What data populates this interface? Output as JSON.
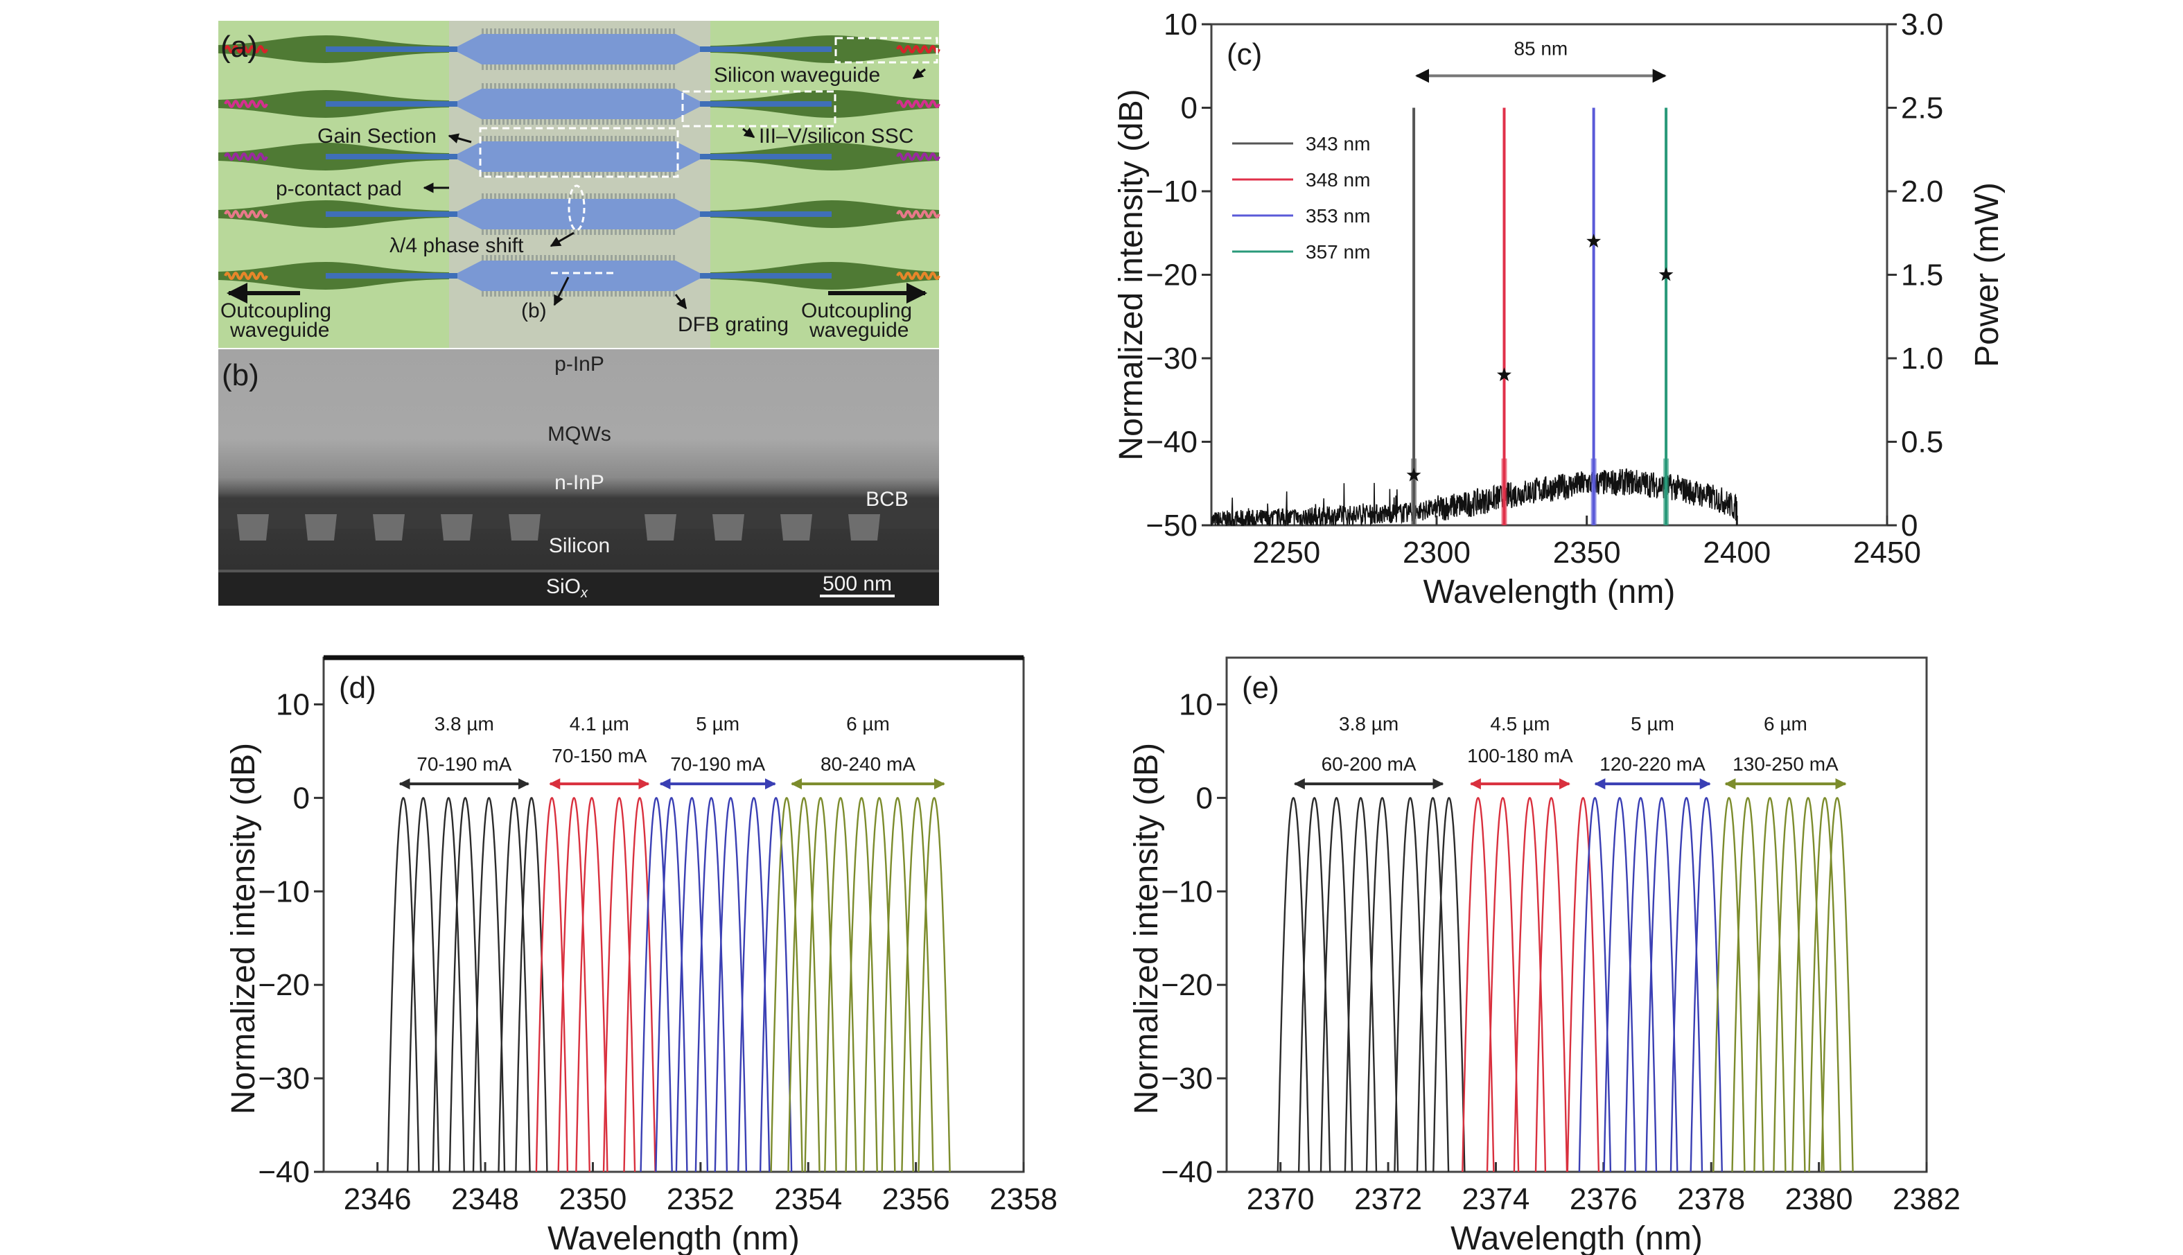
{
  "panel_a": {
    "label": "(a)",
    "labels": {
      "silicon_waveguide": "Silicon waveguide",
      "ssc": "III–V/silicon SSC",
      "gain_section": "Gain Section",
      "p_contact_pad": "p-contact pad",
      "phase_shift": "λ/4  phase shift",
      "b_ref": "(b)",
      "dfb_grating": "DFB grating",
      "outcoupling_left_1": "Outcoupling",
      "outcoupling_left_2": "waveguide",
      "outcoupling_right_1": "Outcoupling",
      "outcoupling_right_2": "waveguide"
    },
    "wave_colors": [
      "#d8232a",
      "#d42f8f",
      "#9a2aa0",
      "#e8788a",
      "#e8862a"
    ],
    "colors": {
      "background": "#b8d89a",
      "center_band": "#c5ccb8",
      "waveguide": "#4f7a34",
      "grating": "#7a98d4",
      "si_core": "#3f6fb8"
    }
  },
  "panel_b": {
    "label": "(b)",
    "layers": {
      "p_inp": "p-InP",
      "mqws": "MQWs",
      "n_inp": "n-InP",
      "bcb": "BCB",
      "silicon": "Silicon",
      "siox": "SiO",
      "siox_sub": "x"
    },
    "scale_bar": "500 nm"
  },
  "chart_data": [
    {
      "id": "c",
      "panel_label": "(c)",
      "type": "line",
      "xlabel": "Wavelength (nm)",
      "ylabel": "Normalized intensity (dB)",
      "ylabel_right": "Power (mW)",
      "xlim": [
        2225,
        2450
      ],
      "ylim": [
        -50,
        10
      ],
      "ylim_right": [
        0,
        3.0
      ],
      "x_ticks": [
        "2250",
        "2300",
        "2350",
        "2400",
        "2450"
      ],
      "x_tick_values": [
        2250,
        2300,
        2350,
        2400,
        2450
      ],
      "y_ticks": [
        "−50",
        "−40",
        "−30",
        "−20",
        "−10",
        "0",
        "10"
      ],
      "y_tick_values": [
        -50,
        -40,
        -30,
        -20,
        -10,
        0,
        10
      ],
      "y_right_ticks": [
        "0",
        "0.5",
        "1.0",
        "1.5",
        "2.0",
        "2.5",
        "3.0"
      ],
      "y_right_tick_values": [
        0,
        0.5,
        1.0,
        1.5,
        2.0,
        2.5,
        3.0
      ],
      "legend_position": "upper-left",
      "series": [
        {
          "name": "343 nm",
          "color": "#555555",
          "peak_wavelength": 2292.4,
          "peak_db": 0,
          "power_mw": 0.3
        },
        {
          "name": "348 nm",
          "color": "#e0304a",
          "peak_wavelength": 2322.5,
          "peak_db": 0,
          "power_mw": 0.9
        },
        {
          "name": "353 nm",
          "color": "#5a5ad8",
          "peak_wavelength": 2352.3,
          "peak_db": 0,
          "power_mw": 1.7
        },
        {
          "name": "357 nm",
          "color": "#2a9a7a",
          "peak_wavelength": 2376.4,
          "peak_db": 0,
          "power_mw": 1.5
        }
      ],
      "background_spectrum": {
        "color": "#111111",
        "points": [
          [
            2225,
            -49.5
          ],
          [
            2260,
            -49
          ],
          [
            2290,
            -48.5
          ],
          [
            2310,
            -47.5
          ],
          [
            2330,
            -46
          ],
          [
            2350,
            -45
          ],
          [
            2365,
            -44.8
          ],
          [
            2380,
            -45.5
          ],
          [
            2395,
            -47
          ],
          [
            2400,
            -48
          ]
        ]
      },
      "annotation": {
        "text": "85 nm",
        "x_from": 2292.4,
        "x_to": 2377,
        "y": 2
      }
    },
    {
      "id": "d",
      "panel_label": "(d)",
      "type": "line",
      "xlabel": "Wavelength (nm)",
      "ylabel": "Normalized intensity (dB)",
      "xlim": [
        2345,
        2358
      ],
      "ylim": [
        -40,
        15
      ],
      "x_ticks": [
        "2346",
        "2348",
        "2350",
        "2352",
        "2354",
        "2356",
        "2358"
      ],
      "x_tick_values": [
        2346,
        2348,
        2350,
        2352,
        2354,
        2356,
        2358
      ],
      "y_ticks": [
        "−40",
        "−30",
        "−20",
        "−10",
        "0",
        "10"
      ],
      "y_tick_values": [
        -40,
        -30,
        -20,
        -10,
        0,
        10
      ],
      "groups": [
        {
          "period": "3.8 µm",
          "current": "70-190 mA",
          "color": "#2b2b2b",
          "arrow": [
            2346.34,
            2348.88
          ],
          "peaks": [
            2346.48,
            2346.85,
            2347.32,
            2347.63,
            2348.07,
            2348.54,
            2348.86
          ]
        },
        {
          "period": "4.1 µm",
          "current": "70-150 mA",
          "color": "#d9303e",
          "arrow": [
            2349.13,
            2351.11
          ],
          "peaks": [
            2349.24,
            2349.65,
            2349.98,
            2350.49,
            2350.87
          ]
        },
        {
          "period": "5 µm",
          "current": "70-190 mA",
          "color": "#3a3fb4",
          "arrow": [
            2351.18,
            2353.46
          ],
          "peaks": [
            2351.18,
            2351.46,
            2351.84,
            2352.2,
            2352.56,
            2352.99,
            2353.4
          ]
        },
        {
          "period": "6 µm",
          "current": "80-240 mA",
          "color": "#7c8c2c",
          "arrow": [
            2353.62,
            2356.6
          ],
          "peaks": [
            2353.6,
            2353.92,
            2354.23,
            2354.6,
            2354.99,
            2355.32,
            2355.66,
            2356.03,
            2356.34
          ]
        }
      ]
    },
    {
      "id": "e",
      "panel_label": "(e)",
      "type": "line",
      "xlabel": "Wavelength (nm)",
      "ylabel": "Normalized intensity (dB)",
      "xlim": [
        2369,
        2382
      ],
      "ylim": [
        -40,
        15
      ],
      "x_ticks": [
        "2370",
        "2372",
        "2374",
        "2376",
        "2378",
        "2380",
        "2382"
      ],
      "x_tick_values": [
        2370,
        2372,
        2374,
        2376,
        2378,
        2380,
        2382
      ],
      "y_ticks": [
        "−40",
        "−30",
        "−20",
        "−10",
        "0",
        "10"
      ],
      "y_tick_values": [
        -40,
        -30,
        -20,
        -10,
        0,
        10
      ],
      "groups": [
        {
          "period": "3.8 µm",
          "current": "60-200 mA",
          "color": "#2b2b2b",
          "arrow": [
            2370.19,
            2373.09
          ],
          "peaks": [
            2370.24,
            2370.63,
            2371.04,
            2371.49,
            2371.89,
            2372.41,
            2372.83,
            2373.13
          ]
        },
        {
          "period": "4.5 µm",
          "current": "100-180 mA",
          "color": "#d9303e",
          "arrow": [
            2373.46,
            2375.44
          ],
          "peaks": [
            2373.67,
            2374.13,
            2374.63,
            2375.03,
            2375.62
          ]
        },
        {
          "period": "5 µm",
          "current": "120-220 mA",
          "color": "#3a3fb4",
          "arrow": [
            2375.77,
            2378.05
          ],
          "peaks": [
            2375.84,
            2376.3,
            2376.69,
            2377.08,
            2377.54,
            2377.91
          ]
        },
        {
          "period": "6 µm",
          "current": "130-250 mA",
          "color": "#7c8c2c",
          "arrow": [
            2378.19,
            2380.57
          ],
          "peaks": [
            2378.33,
            2378.68,
            2379.09,
            2379.45,
            2379.8,
            2380.11,
            2380.34
          ]
        }
      ]
    }
  ]
}
